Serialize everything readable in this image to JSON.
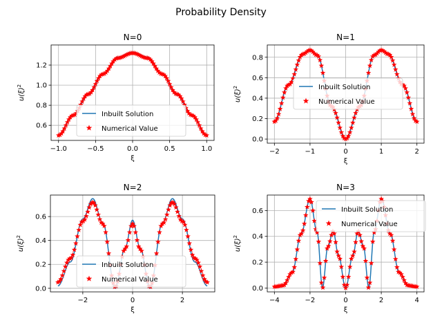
{
  "figure": {
    "suptitle": "Probability Density"
  },
  "colors": {
    "line": "#1f77b4",
    "marker": "#ff0000",
    "grid": "#b0b0b0",
    "axes": "#000000"
  },
  "chart_data": [
    {
      "type": "line",
      "title": "N=0",
      "xlabel": "ξ",
      "ylabel": "u(ξ)",
      "ylabel_sup": "2",
      "xlim": [
        -1.1,
        1.1
      ],
      "ylim": [
        0.45,
        1.4
      ],
      "xticks": [
        -1.0,
        -0.5,
        0.0,
        0.5,
        1.0
      ],
      "xtick_labels": [
        "−1.0",
        "−0.5",
        "0.0",
        "0.5",
        "1.0"
      ],
      "yticks": [
        0.6,
        0.8,
        1.0,
        1.2
      ],
      "ytick_labels": [
        "0.6",
        "0.8",
        "1.0",
        "1.2"
      ],
      "grid": true,
      "legend": {
        "placement": "lower center",
        "entries": [
          "Inbuilt Solution",
          "Numerical Value"
        ]
      },
      "series": [
        {
          "name": "Inbuilt Solution",
          "kind": "line",
          "x": [
            -1.0,
            -0.8,
            -0.6,
            -0.4,
            -0.2,
            0.0,
            0.2,
            0.4,
            0.6,
            0.8,
            1.0
          ],
          "y": [
            0.5,
            0.7,
            0.9,
            1.11,
            1.28,
            1.33,
            1.28,
            1.11,
            0.9,
            0.7,
            0.5
          ]
        },
        {
          "name": "Numerical Value",
          "kind": "scatter",
          "x": [
            -1.0,
            -0.8,
            -0.6,
            -0.4,
            -0.2,
            0.0,
            0.2,
            0.4,
            0.6,
            0.8,
            1.0
          ],
          "y": [
            0.5,
            0.7,
            0.91,
            1.11,
            1.27,
            1.32,
            1.27,
            1.11,
            0.91,
            0.7,
            0.5
          ]
        }
      ]
    },
    {
      "type": "line",
      "title": "N=1",
      "xlabel": "ξ",
      "ylabel": "u(ξ)",
      "ylabel_sup": "2",
      "xlim": [
        -2.2,
        2.2
      ],
      "ylim": [
        -0.04,
        0.92
      ],
      "xticks": [
        -2,
        -1,
        0,
        1,
        2
      ],
      "xtick_labels": [
        "−2",
        "−1",
        "0",
        "1",
        "2"
      ],
      "yticks": [
        0.0,
        0.2,
        0.4,
        0.6,
        0.8
      ],
      "ytick_labels": [
        "0.0",
        "0.2",
        "0.4",
        "0.6",
        "0.8"
      ],
      "grid": true,
      "legend": {
        "placement": "center",
        "entries": [
          "Inbuilt Solution",
          "Numerical Value"
        ]
      },
      "series": [
        {
          "name": "Inbuilt Solution",
          "kind": "line",
          "x": [
            -2.0,
            -1.6,
            -1.2,
            -1.0,
            -0.8,
            -0.4,
            0.0,
            0.4,
            0.8,
            1.0,
            1.2,
            1.6,
            2.0
          ],
          "y": [
            0.17,
            0.53,
            0.83,
            0.87,
            0.82,
            0.32,
            0.0,
            0.32,
            0.82,
            0.87,
            0.83,
            0.53,
            0.17
          ]
        },
        {
          "name": "Numerical Value",
          "kind": "scatter",
          "x": [
            -2.0,
            -1.6,
            -1.2,
            -1.0,
            -0.8,
            -0.4,
            0.0,
            0.4,
            0.8,
            1.0,
            1.2,
            1.6,
            2.0
          ],
          "y": [
            0.17,
            0.53,
            0.83,
            0.87,
            0.82,
            0.32,
            0.0,
            0.32,
            0.82,
            0.87,
            0.83,
            0.53,
            0.17
          ]
        }
      ]
    },
    {
      "type": "line",
      "title": "N=2",
      "xlabel": "ξ",
      "ylabel": "u(ξ)",
      "ylabel_sup": "2",
      "xlim": [
        -3.3,
        3.3
      ],
      "ylim": [
        -0.03,
        0.78
      ],
      "xticks": [
        -2,
        0,
        2
      ],
      "xtick_labels": [
        "−2",
        "0",
        "2"
      ],
      "yticks": [
        0.0,
        0.2,
        0.4,
        0.6
      ],
      "ytick_labels": [
        "0.0",
        "0.2",
        "0.4",
        "0.6"
      ],
      "grid": true,
      "legend": {
        "placement": "lower center",
        "entries": [
          "Inbuilt Solution",
          "Numerical Value"
        ]
      },
      "series": [
        {
          "name": "Inbuilt Solution",
          "kind": "line",
          "x": [
            -3.0,
            -2.5,
            -2.0,
            -1.6,
            -1.2,
            -0.7,
            -0.3,
            0.0,
            0.3,
            0.7,
            1.2,
            1.6,
            2.0,
            2.5,
            3.0
          ],
          "y": [
            0.02,
            0.22,
            0.58,
            0.75,
            0.55,
            0.0,
            0.34,
            0.57,
            0.34,
            0.0,
            0.55,
            0.75,
            0.58,
            0.22,
            0.02
          ]
        },
        {
          "name": "Numerical Value",
          "kind": "scatter",
          "x": [
            -3.0,
            -2.5,
            -2.0,
            -1.6,
            -1.2,
            -0.7,
            -0.3,
            0.0,
            0.3,
            0.7,
            1.2,
            1.6,
            2.0,
            2.5,
            3.0
          ],
          "y": [
            0.05,
            0.25,
            0.56,
            0.72,
            0.54,
            0.01,
            0.33,
            0.54,
            0.33,
            0.01,
            0.54,
            0.72,
            0.56,
            0.25,
            0.05
          ]
        }
      ]
    },
    {
      "type": "line",
      "title": "N=3",
      "xlabel": "ξ",
      "ylabel": "u(ξ)",
      "ylabel_sup": "2",
      "xlim": [
        -4.4,
        4.4
      ],
      "ylim": [
        -0.03,
        0.72
      ],
      "xticks": [
        -4,
        -2,
        0,
        2,
        4
      ],
      "xtick_labels": [
        "−4",
        "−2",
        "0",
        "2",
        "4"
      ],
      "yticks": [
        0.0,
        0.2,
        0.4,
        0.6
      ],
      "ytick_labels": [
        "0.0",
        "0.2",
        "0.4",
        "0.6"
      ],
      "grid": true,
      "legend": {
        "placement": "upper right",
        "entries": [
          "Inbuilt Solution",
          "Numerical Value"
        ]
      },
      "series": [
        {
          "name": "Inbuilt Solution",
          "kind": "line",
          "x": [
            -4.0,
            -3.5,
            -3.0,
            -2.5,
            -2.0,
            -1.6,
            -1.3,
            -1.0,
            -0.7,
            -0.4,
            0.0,
            0.4,
            0.7,
            1.0,
            1.3,
            1.6,
            2.0,
            2.5,
            3.0,
            3.5,
            4.0
          ],
          "y": [
            0.01,
            0.02,
            0.12,
            0.42,
            0.69,
            0.43,
            0.0,
            0.32,
            0.44,
            0.25,
            0.0,
            0.25,
            0.44,
            0.32,
            0.0,
            0.43,
            0.69,
            0.42,
            0.12,
            0.02,
            0.01
          ]
        },
        {
          "name": "Numerical Value",
          "kind": "scatter",
          "x": [
            -4.0,
            -3.5,
            -3.0,
            -2.5,
            -2.0,
            -1.6,
            -1.3,
            -1.0,
            -0.7,
            -0.4,
            0.0,
            0.4,
            0.7,
            1.0,
            1.3,
            1.6,
            2.0,
            2.5,
            3.0,
            3.5,
            4.0
          ],
          "y": [
            0.01,
            0.02,
            0.12,
            0.42,
            0.69,
            0.43,
            0.0,
            0.32,
            0.44,
            0.25,
            0.0,
            0.25,
            0.44,
            0.32,
            0.0,
            0.43,
            0.69,
            0.42,
            0.12,
            0.02,
            0.01
          ]
        }
      ]
    }
  ]
}
